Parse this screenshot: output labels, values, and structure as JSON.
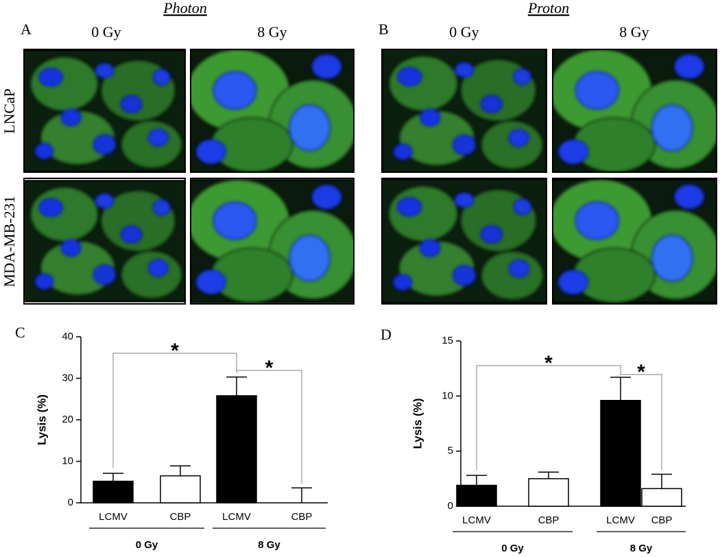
{
  "figure": {
    "panels": [
      {
        "label": "A",
        "title": "Photon",
        "columns": [
          "0 Gy",
          "8 Gy"
        ]
      },
      {
        "label": "B",
        "title": "Proton",
        "columns": [
          "0 Gy",
          "8 Gy"
        ]
      }
    ],
    "rows": [
      "LNCaP",
      "MDA-MB-231"
    ]
  },
  "chart_data": [
    {
      "type": "bar",
      "panel": "C",
      "ylabel": "Lysis (%)",
      "categories": [
        "LCMV",
        "CBP",
        "LCMV",
        "CBP"
      ],
      "values": [
        5.2,
        6.5,
        25.8,
        0
      ],
      "errors": [
        1.9,
        2.4,
        4.5,
        3.6
      ],
      "colors": [
        "#000000",
        "#ffffff",
        "#000000",
        "#ffffff"
      ],
      "ylim": [
        0,
        40
      ],
      "yticks": [
        0,
        10,
        20,
        30,
        40
      ],
      "groups": [
        "0 Gy",
        "8 Gy"
      ],
      "significance": [
        "*",
        "*"
      ]
    },
    {
      "type": "bar",
      "panel": "D",
      "ylabel": "Lysis (%)",
      "categories": [
        "LCMV",
        "CBP",
        "LCMV",
        "CBP"
      ],
      "values": [
        1.9,
        2.5,
        9.6,
        1.6
      ],
      "errors": [
        0.9,
        0.6,
        2.1,
        1.3
      ],
      "colors": [
        "#000000",
        "#ffffff",
        "#000000",
        "#ffffff"
      ],
      "ylim": [
        0,
        15
      ],
      "yticks": [
        0,
        5,
        10,
        15
      ],
      "groups": [
        "0 Gy",
        "8 Gy"
      ],
      "significance": [
        "*",
        "*"
      ]
    }
  ]
}
